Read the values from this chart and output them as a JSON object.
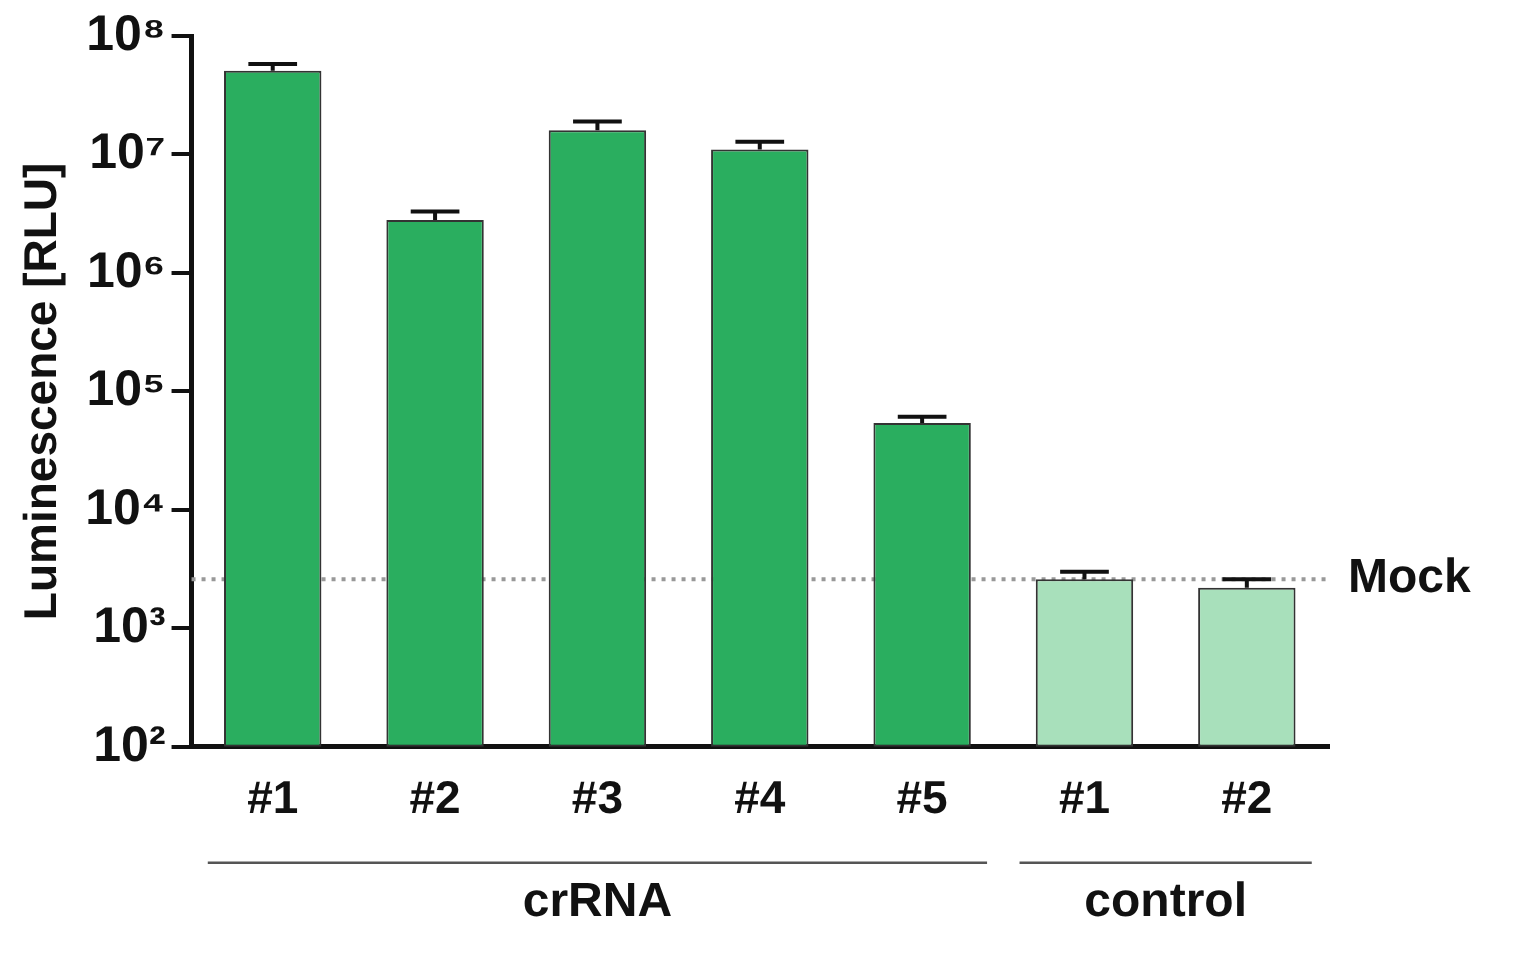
{
  "chart_data": {
    "type": "bar",
    "ylabel": "Luminescence [RLU]",
    "categories": [
      "#1",
      "#2",
      "#3",
      "#4",
      "#5",
      "#1",
      "#2"
    ],
    "values": [
      51000000,
      2800000,
      16000000,
      11000000,
      54000,
      2600,
      2200
    ],
    "errors": [
      [
        51000000,
        58000000
      ],
      [
        2800000,
        3300000
      ],
      [
        16000000,
        19000000
      ],
      [
        11000000,
        12800000
      ],
      [
        54000,
        61000
      ],
      [
        2600,
        3000
      ],
      [
        2200,
        2600
      ]
    ],
    "colors": [
      "#2aae5f",
      "#2aae5f",
      "#2aae5f",
      "#2aae5f",
      "#2aae5f",
      "#a8e0bb",
      "#a8e0bb"
    ],
    "log": true,
    "ylim": [
      100,
      100000000
    ],
    "yticks": [
      {
        "value": 100,
        "label": "10²"
      },
      {
        "value": 1000,
        "label": "10³"
      },
      {
        "value": 10000,
        "label": "10⁴"
      },
      {
        "value": 100000,
        "label": "10⁵"
      },
      {
        "value": 1000000,
        "label": "10⁶"
      },
      {
        "value": 10000000,
        "label": "10⁷"
      },
      {
        "value": 100000000,
        "label": "10⁸"
      }
    ],
    "grid": false,
    "legend": false,
    "ref_lines": [
      {
        "axis": "y",
        "value": 2600,
        "label": "Mock",
        "color": "#999999",
        "line_style": "dotted"
      }
    ],
    "annotations": [
      "crRNA",
      "control"
    ]
  }
}
